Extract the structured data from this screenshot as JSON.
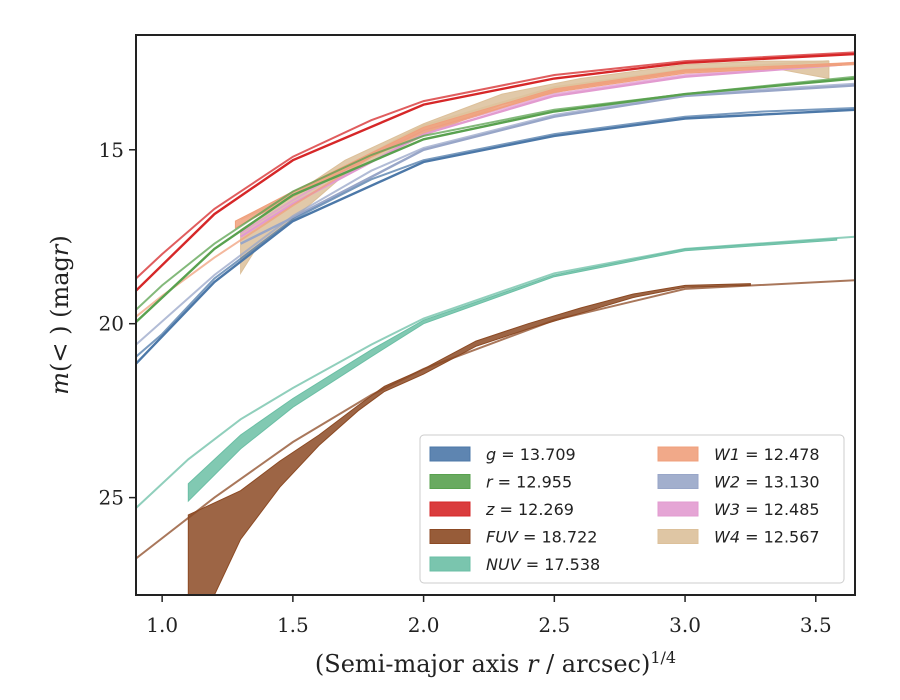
{
  "chart_data": {
    "type": "line",
    "xlabel": "(Semi-major axis r / arcsec)^{1/4}",
    "ylabel": "m(< r) (mag)",
    "xlim": [
      0.9,
      3.65
    ],
    "ylim": [
      27.8,
      11.7
    ],
    "y_inverted": true,
    "xticks": [
      "1.0",
      "1.5",
      "2.0",
      "2.5",
      "3.0",
      "3.5"
    ],
    "yticks": [
      "15",
      "20",
      "25"
    ],
    "legend": {
      "placement": "lower-right",
      "columns": 2
    },
    "series": [
      {
        "name": "g",
        "label_value": "13.709",
        "color": "#4c78a8",
        "model": {
          "x": [
            0.9,
            1.0,
            1.2,
            1.5,
            1.8,
            2.0,
            2.5,
            3.0,
            3.3,
            3.65
          ],
          "y": [
            20.95,
            20.3,
            18.7,
            17.0,
            15.85,
            15.3,
            14.55,
            14.05,
            13.9,
            13.8
          ]
        },
        "data_lower": {
          "x": [
            0.9,
            1.2,
            1.5,
            2.0,
            2.5,
            3.0,
            3.65
          ],
          "y": [
            21.15,
            18.8,
            17.05,
            15.35,
            14.6,
            14.1,
            13.85
          ]
        }
      },
      {
        "name": "r",
        "label_value": "12.955",
        "color": "#59a14f",
        "model": {
          "x": [
            0.9,
            1.0,
            1.2,
            1.5,
            1.8,
            2.0,
            2.5,
            3.0,
            3.65
          ],
          "y": [
            19.6,
            18.9,
            17.7,
            16.2,
            15.15,
            14.6,
            13.85,
            13.4,
            12.9
          ]
        },
        "data_lower": {
          "x": [
            0.9,
            1.2,
            1.5,
            2.0,
            2.5,
            3.0,
            3.65
          ],
          "y": [
            19.95,
            17.85,
            16.3,
            14.7,
            13.9,
            13.4,
            12.95
          ]
        }
      },
      {
        "name": "z",
        "label_value": "12.269",
        "color": "#d62728",
        "model": {
          "x": [
            0.9,
            1.0,
            1.2,
            1.5,
            1.8,
            2.0,
            2.5,
            3.0,
            3.65
          ],
          "y": [
            18.7,
            18.0,
            16.7,
            15.2,
            14.15,
            13.6,
            12.85,
            12.45,
            12.2
          ]
        },
        "data_lower": {
          "x": [
            0.9,
            1.2,
            1.5,
            2.0,
            2.5,
            3.0,
            3.65
          ],
          "y": [
            19.05,
            16.85,
            15.3,
            13.7,
            12.95,
            12.5,
            12.25
          ]
        }
      },
      {
        "name": "FUV",
        "label_value": "18.722",
        "color": "#8c4a24",
        "model": {
          "x": [
            0.9,
            1.2,
            1.5,
            1.8,
            2.0,
            2.5,
            3.0,
            3.65
          ],
          "y": [
            26.75,
            25.0,
            23.4,
            22.05,
            21.3,
            19.9,
            19.0,
            18.75
          ]
        },
        "band_upper": {
          "x": [
            1.1,
            1.3,
            1.45,
            1.6,
            1.75,
            1.85,
            2.0,
            2.2,
            2.4,
            2.6,
            2.8,
            3.0,
            3.25
          ],
          "y": [
            25.5,
            24.8,
            23.95,
            23.2,
            22.35,
            21.8,
            21.3,
            20.5,
            20.0,
            19.55,
            19.15,
            18.9,
            18.85
          ]
        },
        "band_lower": {
          "x": [
            1.1,
            1.2,
            1.3,
            1.45,
            1.6,
            1.75,
            1.85,
            2.0,
            2.2,
            2.4,
            2.6,
            2.8,
            3.0,
            3.25
          ],
          "y": [
            27.8,
            27.8,
            26.2,
            24.7,
            23.5,
            22.5,
            21.95,
            21.45,
            20.65,
            20.15,
            19.7,
            19.25,
            18.95,
            18.9
          ]
        }
      },
      {
        "name": "NUV",
        "label_value": "17.538",
        "color": "#6bbfa5",
        "model": {
          "x": [
            0.9,
            1.1,
            1.3,
            1.5,
            1.8,
            2.0,
            2.5,
            3.0,
            3.65
          ],
          "y": [
            25.3,
            23.9,
            22.75,
            21.85,
            20.6,
            19.85,
            18.55,
            17.85,
            17.5
          ]
        },
        "band_upper": {
          "x": [
            1.1,
            1.3,
            1.5,
            1.8,
            2.0,
            2.5,
            3.0,
            3.58
          ],
          "y": [
            24.6,
            23.2,
            22.15,
            20.75,
            19.9,
            18.6,
            17.85,
            17.55
          ]
        },
        "band_lower": {
          "x": [
            1.1,
            1.3,
            1.5,
            1.8,
            2.0,
            2.5,
            3.0,
            3.58
          ],
          "y": [
            25.1,
            23.6,
            22.4,
            20.95,
            20.0,
            18.65,
            17.9,
            17.6
          ]
        }
      },
      {
        "name": "W1",
        "label_value": "12.478",
        "color": "#f0a07c",
        "model": {
          "x": [
            0.9,
            1.0,
            1.2,
            1.5,
            1.8,
            2.0,
            2.5,
            3.0,
            3.65
          ],
          "y": [
            19.8,
            19.2,
            18.1,
            16.6,
            15.2,
            14.5,
            13.3,
            12.75,
            12.5
          ]
        },
        "band_upper": {
          "x": [
            1.28,
            1.5,
            2.0,
            2.5,
            3.0,
            3.65
          ],
          "y": [
            17.05,
            16.2,
            14.35,
            13.25,
            12.7,
            12.5
          ]
        },
        "band_lower": {
          "x": [
            1.28,
            1.5,
            2.0,
            2.5,
            3.0,
            3.65
          ],
          "y": [
            17.25,
            16.35,
            14.45,
            13.35,
            12.8,
            12.55
          ]
        }
      },
      {
        "name": "W2",
        "label_value": "13.130",
        "color": "#98a6c8",
        "model": {
          "x": [
            0.9,
            1.2,
            1.5,
            1.8,
            2.0,
            2.5,
            3.0,
            3.65
          ],
          "y": [
            20.6,
            18.6,
            16.9,
            15.6,
            14.95,
            14.0,
            13.4,
            13.1
          ]
        },
        "data_lower": {
          "x": [
            1.3,
            1.5,
            2.0,
            2.5,
            3.0,
            3.65
          ],
          "y": [
            17.7,
            16.95,
            15.0,
            14.05,
            13.45,
            13.15
          ]
        }
      },
      {
        "name": "W3",
        "label_value": "12.485",
        "color": "#e29bd0",
        "model": {
          "x": [
            1.3,
            1.5,
            1.8,
            2.0,
            2.5,
            3.0,
            3.65
          ],
          "y": [
            17.4,
            16.45,
            15.15,
            14.45,
            13.4,
            12.85,
            12.5
          ]
        },
        "data_lower": {
          "x": [
            1.3,
            1.5,
            2.0,
            2.5,
            3.0,
            3.6
          ],
          "y": [
            17.5,
            16.55,
            14.55,
            13.45,
            12.9,
            12.55
          ]
        }
      },
      {
        "name": "W4",
        "label_value": "12.567",
        "color": "#dcc09a",
        "model": {
          "x": [
            1.3,
            1.5,
            2.0,
            2.5,
            3.0,
            3.55
          ],
          "y": [
            17.0,
            16.3,
            14.3,
            13.2,
            12.7,
            12.45
          ]
        },
        "band_upper": {
          "x": [
            1.3,
            1.5,
            1.7,
            2.0,
            2.3,
            2.6,
            3.0,
            3.3,
            3.55
          ],
          "y": [
            17.3,
            16.3,
            15.3,
            14.25,
            13.4,
            12.95,
            12.55,
            12.45,
            12.45
          ]
        },
        "band_lower": {
          "x": [
            1.3,
            1.35,
            1.5,
            1.7,
            2.0,
            2.3,
            2.6,
            3.0,
            3.3,
            3.55
          ],
          "y": [
            18.55,
            17.95,
            17.0,
            15.7,
            14.6,
            13.7,
            13.2,
            12.75,
            12.6,
            12.95
          ]
        }
      }
    ]
  }
}
